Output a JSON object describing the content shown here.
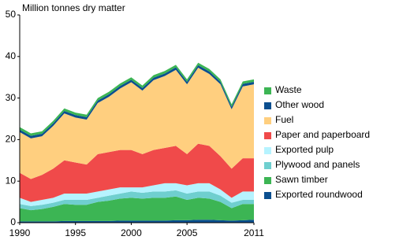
{
  "chart_data": {
    "type": "stacked-area",
    "y_label": "Million tonnes dry matter",
    "x": [
      1990,
      1991,
      1992,
      1993,
      1994,
      1995,
      1996,
      1997,
      1998,
      1999,
      2000,
      2001,
      2002,
      2003,
      2004,
      2005,
      2006,
      2007,
      2008,
      2009,
      2010,
      2011
    ],
    "xlim": [
      1990,
      2011
    ],
    "xticks": [
      1990,
      1995,
      2000,
      2005,
      2011
    ],
    "ylim": [
      0,
      50
    ],
    "yticks": [
      0,
      10,
      20,
      30,
      40,
      50
    ],
    "grid": false,
    "legend": "right",
    "series": [
      {
        "name": "Exported roundwood",
        "color": "#0b4f8f",
        "values": [
          0.3,
          0.3,
          0.3,
          0.3,
          0.4,
          0.4,
          0.4,
          0.4,
          0.4,
          0.5,
          0.5,
          0.5,
          0.5,
          0.5,
          0.6,
          0.6,
          0.7,
          0.7,
          0.6,
          0.5,
          0.6,
          0.7
        ]
      },
      {
        "name": "Sawn timber",
        "color": "#3cb554",
        "values": [
          3.2,
          2.7,
          3.0,
          3.5,
          4.1,
          3.9,
          3.9,
          4.6,
          4.9,
          5.3,
          5.5,
          5.3,
          5.5,
          5.5,
          5.7,
          4.9,
          5.3,
          5.1,
          4.4,
          3.0,
          3.9,
          3.8
        ]
      },
      {
        "name": "Plywood and panels",
        "color": "#6fcfcf",
        "values": [
          1.0,
          1.0,
          1.0,
          1.0,
          1.0,
          1.2,
          1.2,
          1.0,
          1.2,
          1.2,
          1.5,
          1.4,
          1.5,
          1.5,
          1.5,
          1.5,
          1.5,
          1.7,
          1.5,
          1.3,
          1.0,
          1.0
        ]
      },
      {
        "name": "Exported pulp",
        "color": "#b6f3ff",
        "values": [
          1.5,
          1.0,
          1.2,
          1.2,
          1.5,
          1.5,
          1.5,
          1.5,
          1.5,
          1.5,
          1.0,
          1.3,
          1.5,
          2.0,
          1.7,
          2.0,
          2.0,
          2.0,
          1.5,
          1.2,
          2.0,
          2.0
        ]
      },
      {
        "name": "Paper and paperboard",
        "color": "#f04a4a",
        "values": [
          6,
          5.5,
          6,
          7,
          8,
          7.5,
          7,
          9,
          9,
          9,
          9,
          8,
          8.5,
          8.5,
          9,
          7.5,
          9.5,
          9,
          8,
          7,
          8,
          8
        ]
      },
      {
        "name": "Fuel",
        "color": "#ffcf7f",
        "values": [
          9.8,
          9.8,
          9.3,
          10.3,
          11.3,
          10.8,
          10.8,
          12.3,
          13.3,
          14.8,
          16.3,
          15.3,
          16.8,
          17.3,
          18.3,
          16.8,
          18.3,
          17.3,
          17.3,
          14.3,
          17.3,
          17.8
        ]
      },
      {
        "name": "Other wood",
        "color": "#0b4f8f",
        "values": [
          0.6,
          0.6,
          0.6,
          0.6,
          0.6,
          0.6,
          0.6,
          0.6,
          0.6,
          0.6,
          0.6,
          0.6,
          0.6,
          0.6,
          0.6,
          0.6,
          0.6,
          0.6,
          0.6,
          0.6,
          0.6,
          0.6
        ]
      },
      {
        "name": "Waste",
        "color": "#3cb554",
        "values": [
          0.6,
          0.6,
          0.6,
          0.6,
          0.6,
          0.6,
          0.6,
          0.6,
          0.6,
          0.6,
          0.6,
          0.6,
          0.6,
          0.6,
          0.6,
          0.6,
          0.6,
          0.6,
          0.6,
          0.6,
          0.6,
          0.6
        ]
      }
    ]
  }
}
